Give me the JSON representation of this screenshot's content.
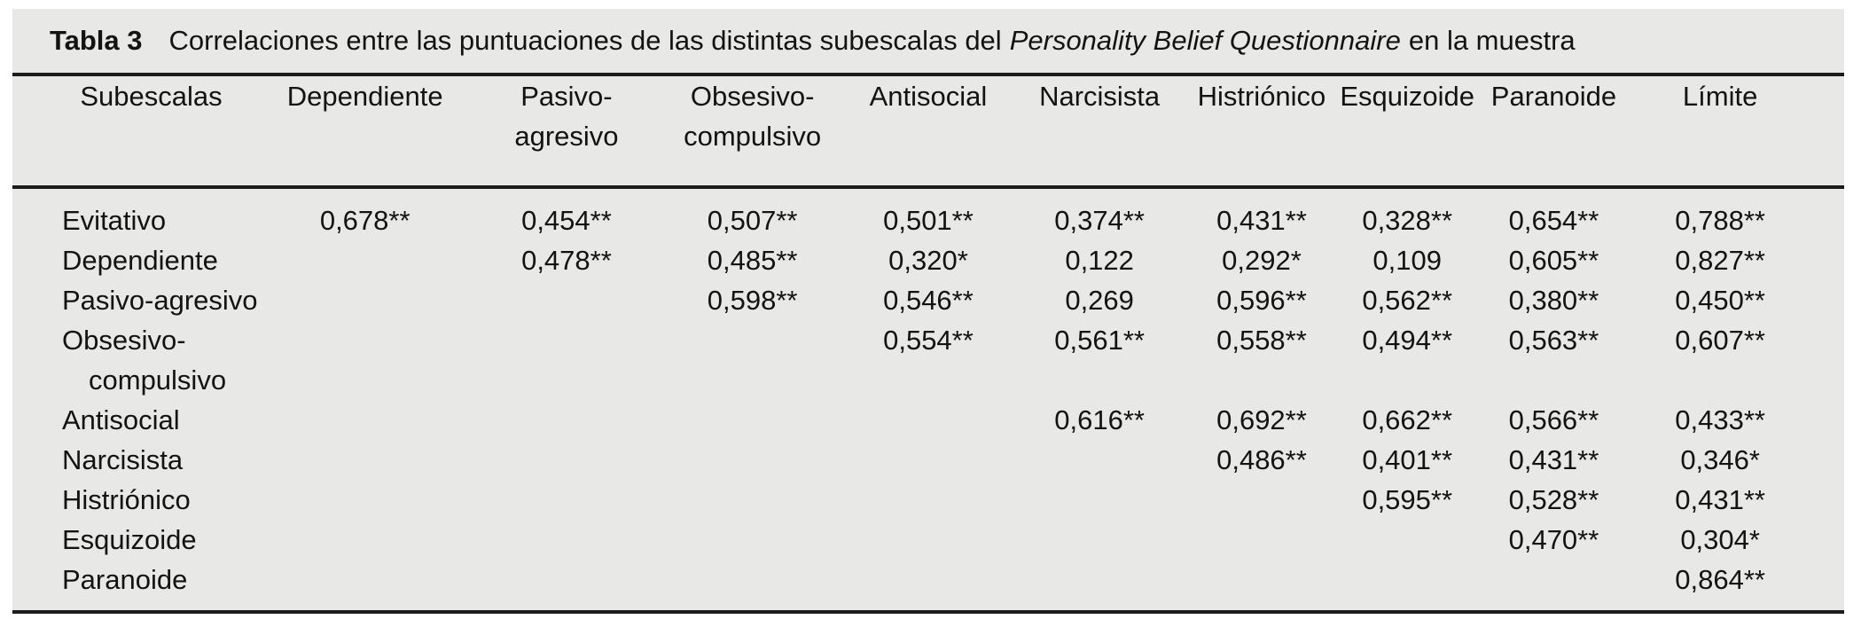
{
  "title": {
    "label": "Tabla 3",
    "pre": "Correlaciones entre las puntuaciones de las distintas subescalas del",
    "italic": "Personality Belief Questionnaire",
    "post": "en la muestra"
  },
  "colors": {
    "panel_bg": "#e8e8e7",
    "rule": "#1b1b1b",
    "text": "#131313"
  },
  "table": {
    "columns": [
      {
        "label": "Subescalas"
      },
      {
        "label": "Dependiente"
      },
      {
        "label": "Pasivo-",
        "label2": "agresivo"
      },
      {
        "label": "Obsesivo-",
        "label2": "compulsivo"
      },
      {
        "label": "Antisocial"
      },
      {
        "label": "Narcisista"
      },
      {
        "label": "Histriónico"
      },
      {
        "label": "Esquizoide"
      },
      {
        "label": "Paranoide"
      },
      {
        "label": "Límite"
      }
    ],
    "rows": [
      {
        "label": "Evitativo",
        "values": [
          "0,678**",
          "0,454**",
          "0,507**",
          "0,501**",
          "0,374**",
          "0,431**",
          "0,328**",
          "0,654**",
          "0,788**"
        ]
      },
      {
        "label": "Dependiente",
        "values": [
          "",
          "0,478**",
          "0,485**",
          "0,320*",
          "0,122",
          "0,292*",
          "0,109",
          "0,605**",
          "0,827**"
        ]
      },
      {
        "label": "Pasivo-agresivo",
        "values": [
          "",
          "",
          "0,598**",
          "0,546**",
          "0,269",
          "0,596**",
          "0,562**",
          "0,380**",
          "0,450**"
        ]
      },
      {
        "label": "Obsesivo-",
        "label2": "compulsivo",
        "values": [
          "",
          "",
          "",
          "0,554**",
          "0,561**",
          "0,558**",
          "0,494**",
          "0,563**",
          "0,607**"
        ]
      },
      {
        "label": "Antisocial",
        "values": [
          "",
          "",
          "",
          "",
          "0,616**",
          "0,692**",
          "0,662**",
          "0,566**",
          "0,433**"
        ]
      },
      {
        "label": "Narcisista",
        "values": [
          "",
          "",
          "",
          "",
          "",
          "0,486**",
          "0,401**",
          "0,431**",
          "0,346*"
        ]
      },
      {
        "label": "Histriónico",
        "values": [
          "",
          "",
          "",
          "",
          "",
          "",
          "0,595**",
          "0,528**",
          "0,431**"
        ]
      },
      {
        "label": "Esquizoide",
        "values": [
          "",
          "",
          "",
          "",
          "",
          "",
          "",
          "0,470**",
          "0,304*"
        ]
      },
      {
        "label": "Paranoide",
        "values": [
          "",
          "",
          "",
          "",
          "",
          "",
          "",
          "",
          "0,864**"
        ]
      }
    ]
  }
}
